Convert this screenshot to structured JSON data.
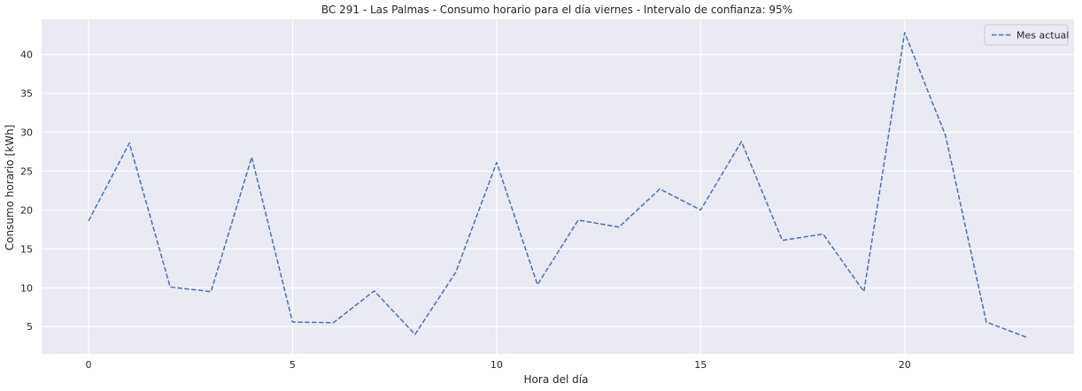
{
  "chart_data": {
    "type": "line",
    "title": "BC 291 - Las Palmas - Consumo horario para el día viernes - Intervalo de confianza: 95%",
    "xlabel": "Hora del día",
    "ylabel": "Consumo horario [kWh]",
    "xlim": [
      -1.15,
      24.15
    ],
    "ylim": [
      1.5,
      44.5
    ],
    "xticks": [
      0,
      5,
      10,
      15,
      20
    ],
    "yticks": [
      5,
      10,
      15,
      20,
      25,
      30,
      35,
      40
    ],
    "grid": true,
    "legend_position": "top-right",
    "colors": {
      "plot_bg": "#eaeaf2",
      "grid": "#ffffff",
      "line": "#4c72b0"
    },
    "series": [
      {
        "name": "Mes actual",
        "line_style": "dashed",
        "x": [
          0,
          1,
          2,
          3,
          4,
          5,
          6,
          7,
          8,
          9,
          10,
          11,
          12,
          13,
          14,
          15,
          16,
          17,
          18,
          19,
          20,
          21,
          22,
          23
        ],
        "y": [
          18.6,
          28.6,
          10.1,
          9.5,
          26.8,
          5.6,
          5.5,
          9.6,
          4.0,
          12.0,
          26.1,
          10.4,
          18.7,
          17.8,
          22.7,
          20.0,
          28.8,
          16.1,
          16.9,
          9.5,
          42.8,
          29.6,
          5.6,
          3.6
        ]
      }
    ]
  }
}
